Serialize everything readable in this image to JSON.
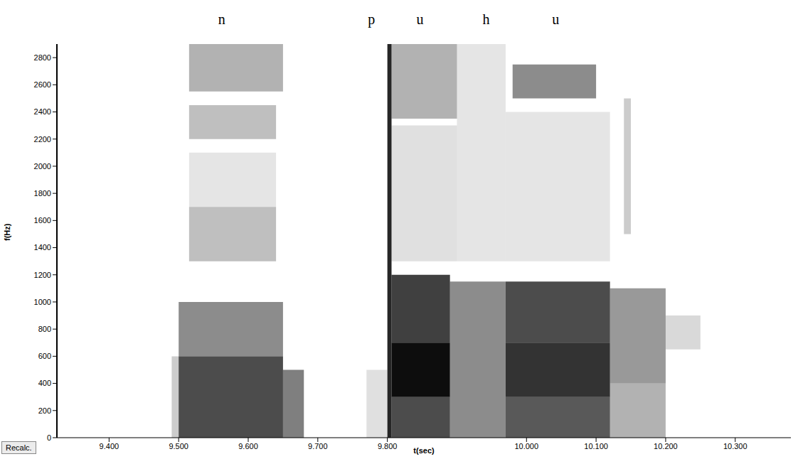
{
  "chart_data": {
    "type": "spectrogram",
    "x_label": "t(sec)",
    "y_label": "f(Hz)",
    "xlim": [
      9.325,
      10.38
    ],
    "xticks": [
      {
        "value": 9.4,
        "label": "9.400"
      },
      {
        "value": 9.5,
        "label": "9.500"
      },
      {
        "value": 9.6,
        "label": "9.600"
      },
      {
        "value": 9.7,
        "label": "9.700"
      },
      {
        "value": 9.8,
        "label": "9.800"
      },
      {
        "value": 10.0,
        "label": "10.000"
      },
      {
        "value": 10.1,
        "label": "10.100"
      },
      {
        "value": 10.2,
        "label": "10.200"
      },
      {
        "value": 10.3,
        "label": "10.300"
      }
    ],
    "ylim": [
      0,
      2900
    ],
    "yticks": [
      0,
      200,
      400,
      600,
      800,
      1000,
      1200,
      1400,
      1600,
      1800,
      2000,
      2200,
      2400,
      2600,
      2800
    ],
    "color": "#000000",
    "grid": false,
    "segments": [
      {
        "label": "n",
        "x": 9.562
      },
      {
        "label": "p",
        "x": 9.777
      },
      {
        "label": "u",
        "x": 9.847
      },
      {
        "label": "h",
        "x": 9.942
      },
      {
        "label": "u",
        "x": 10.042
      }
    ],
    "cells": [
      {
        "t": [
          9.49,
          9.5
        ],
        "f": [
          0,
          600
        ],
        "v": 0.2
      },
      {
        "t": [
          9.5,
          9.65
        ],
        "f": [
          0,
          600
        ],
        "v": 0.7
      },
      {
        "t": [
          9.65,
          9.68
        ],
        "f": [
          0,
          500
        ],
        "v": 0.5
      },
      {
        "t": [
          9.5,
          9.65
        ],
        "f": [
          600,
          1000
        ],
        "v": 0.45
      },
      {
        "t": [
          9.515,
          9.65
        ],
        "f": [
          2550,
          2900
        ],
        "v": 0.3
      },
      {
        "t": [
          9.515,
          9.64
        ],
        "f": [
          2200,
          2450
        ],
        "v": 0.25
      },
      {
        "t": [
          9.515,
          9.64
        ],
        "f": [
          1700,
          2100
        ],
        "v": 0.1
      },
      {
        "t": [
          9.515,
          9.64
        ],
        "f": [
          1300,
          1700
        ],
        "v": 0.25
      },
      {
        "t": [
          9.77,
          9.8
        ],
        "f": [
          0,
          500
        ],
        "v": 0.12
      },
      {
        "t": [
          9.8,
          9.806
        ],
        "f": [
          0,
          2900
        ],
        "v": 0.85
      },
      {
        "t": [
          9.806,
          9.89
        ],
        "f": [
          0,
          300
        ],
        "v": 0.7
      },
      {
        "t": [
          9.806,
          9.89
        ],
        "f": [
          300,
          700
        ],
        "v": 0.95
      },
      {
        "t": [
          9.806,
          9.89
        ],
        "f": [
          700,
          1200
        ],
        "v": 0.75
      },
      {
        "t": [
          9.806,
          9.9
        ],
        "f": [
          1300,
          2300
        ],
        "v": 0.12
      },
      {
        "t": [
          9.806,
          9.9
        ],
        "f": [
          2350,
          2900
        ],
        "v": 0.3
      },
      {
        "t": [
          9.89,
          9.97
        ],
        "f": [
          0,
          1150
        ],
        "v": 0.45
      },
      {
        "t": [
          9.9,
          9.97
        ],
        "f": [
          1300,
          2900
        ],
        "v": 0.1
      },
      {
        "t": [
          9.97,
          10.12
        ],
        "f": [
          0,
          300
        ],
        "v": 0.65
      },
      {
        "t": [
          9.97,
          10.12
        ],
        "f": [
          300,
          700
        ],
        "v": 0.8
      },
      {
        "t": [
          9.97,
          10.12
        ],
        "f": [
          700,
          1150
        ],
        "v": 0.7
      },
      {
        "t": [
          9.97,
          10.12
        ],
        "f": [
          1300,
          2400
        ],
        "v": 0.1
      },
      {
        "t": [
          9.98,
          10.1
        ],
        "f": [
          2500,
          2750
        ],
        "v": 0.45
      },
      {
        "t": [
          10.12,
          10.2
        ],
        "f": [
          0,
          400
        ],
        "v": 0.3
      },
      {
        "t": [
          10.12,
          10.2
        ],
        "f": [
          400,
          1100
        ],
        "v": 0.4
      },
      {
        "t": [
          10.2,
          10.25
        ],
        "f": [
          650,
          900
        ],
        "v": 0.15
      },
      {
        "t": [
          10.14,
          10.15
        ],
        "f": [
          1500,
          2500
        ],
        "v": 0.2
      }
    ]
  },
  "controls": {
    "button": "Recalc."
  }
}
